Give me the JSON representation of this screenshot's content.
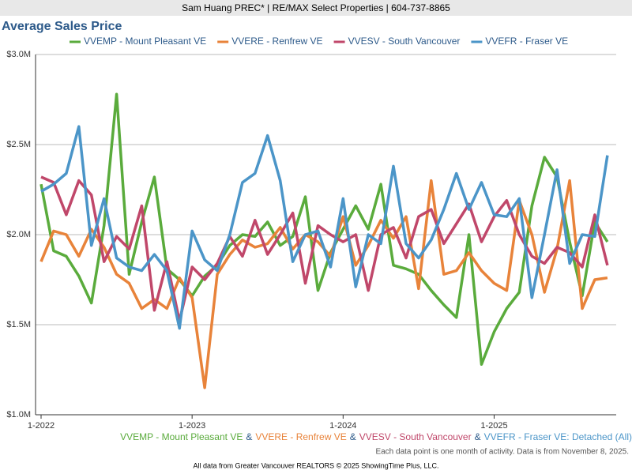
{
  "header": "Sam Huang PREC* | RE/MAX Select Properties | 604-737-8865",
  "chart_data": {
    "type": "line",
    "title": "Average Sales Price",
    "categories": [
      "1-2022",
      null,
      null,
      null,
      null,
      null,
      null,
      null,
      null,
      null,
      null,
      null,
      "1-2023",
      null,
      null,
      null,
      null,
      null,
      null,
      null,
      null,
      null,
      null,
      null,
      "1-2024",
      null,
      null,
      null,
      null,
      null,
      null,
      null,
      null,
      null,
      null,
      null,
      "1-2025",
      null,
      null,
      null,
      null,
      null,
      null,
      null,
      null,
      null
    ],
    "ylim": [
      1,
      3
    ],
    "yticks": [
      {
        "value": 1,
        "label": "$1.0M"
      },
      {
        "value": 1.5,
        "label": "$1.5M"
      },
      {
        "value": 2,
        "label": "$2.0M"
      },
      {
        "value": 2.5,
        "label": "$2.5M"
      },
      {
        "value": 3,
        "label": "$3.0M"
      }
    ],
    "grid": true,
    "legend": "top",
    "series": [
      {
        "name": "VVEMP - Mount Pleasant VE",
        "color": "#5aab3c",
        "values": [
          2.28,
          1.91,
          1.88,
          1.77,
          1.62,
          2.05,
          2.78,
          1.78,
          2.07,
          2.32,
          1.81,
          1.75,
          1.66,
          1.77,
          1.83,
          1.94,
          2.0,
          1.99,
          2.07,
          1.94,
          1.99,
          2.21,
          1.69,
          1.9,
          2.03,
          2.16,
          2.03,
          2.28,
          1.83,
          1.81,
          1.78,
          1.69,
          1.61,
          1.54,
          2.0,
          1.28,
          1.46,
          1.59,
          1.68,
          2.16,
          2.43,
          2.32,
          1.96,
          1.66,
          2.07,
          1.96
        ]
      },
      {
        "name": "VVERE - Renfrew VE",
        "color": "#e8833a",
        "values": [
          1.85,
          2.02,
          2.0,
          1.88,
          2.03,
          1.93,
          1.78,
          1.73,
          1.59,
          1.64,
          1.59,
          1.76,
          1.65,
          1.15,
          1.78,
          1.89,
          1.97,
          1.93,
          1.95,
          2.04,
          1.92,
          2.0,
          1.96,
          1.88,
          2.1,
          1.83,
          1.94,
          2.08,
          1.98,
          2.1,
          1.7,
          2.3,
          1.78,
          1.8,
          1.9,
          1.8,
          1.73,
          1.69,
          2.19,
          2.0,
          1.68,
          1.92,
          2.3,
          1.59,
          1.75,
          1.76
        ]
      },
      {
        "name": "VVESV - South Vancouver",
        "color": "#c0476a",
        "values": [
          2.32,
          2.29,
          2.11,
          2.3,
          2.22,
          1.85,
          1.99,
          1.92,
          2.16,
          1.58,
          1.85,
          1.52,
          1.82,
          1.75,
          1.84,
          1.99,
          1.88,
          2.08,
          1.89,
          2.0,
          2.12,
          1.73,
          2.05,
          2.0,
          1.96,
          2.0,
          1.69,
          2.0,
          2.04,
          1.87,
          2.1,
          2.14,
          1.95,
          2.06,
          2.17,
          1.96,
          2.1,
          2.19,
          2.0,
          1.88,
          1.84,
          1.93,
          1.9,
          1.82,
          2.11,
          1.83
        ]
      },
      {
        "name": "VVEFR - Fraser VE",
        "color": "#4b95c8",
        "values": [
          2.24,
          2.28,
          2.34,
          2.6,
          1.94,
          2.2,
          1.87,
          1.82,
          1.8,
          1.89,
          1.8,
          1.48,
          2.02,
          1.86,
          1.8,
          2.0,
          2.29,
          2.34,
          2.55,
          2.3,
          1.85,
          2.0,
          2.02,
          1.82,
          2.2,
          1.71,
          2.0,
          1.95,
          2.38,
          1.95,
          1.87,
          1.97,
          2.14,
          2.34,
          2.14,
          2.29,
          2.11,
          2.1,
          2.2,
          1.65,
          2.0,
          2.36,
          1.84,
          2.0,
          1.99,
          2.44
        ]
      }
    ],
    "caption": {
      "separator": "&",
      "suffix": ": Detached (All)"
    },
    "note": "Each data point is one month of activity. Data is from November 8, 2025."
  },
  "footer": "All data from Greater Vancouver REALTORS © 2025 ShowingTime Plus, LLC."
}
